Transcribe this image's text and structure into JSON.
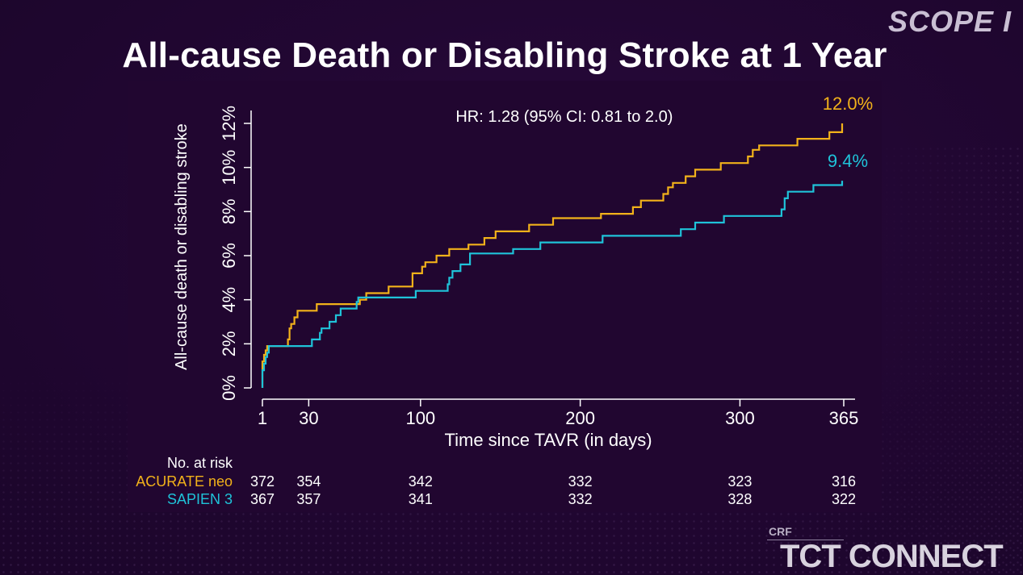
{
  "slide": {
    "title": "All-cause Death or Disabling Stroke at 1 Year",
    "brand_top": "SCOPE I",
    "brand_bottom": "TCT CONNECT",
    "brand_small": "CRF"
  },
  "colors": {
    "acurate": "#f2b21a",
    "sapien": "#1fc3d9",
    "axis": "#ffffff"
  },
  "chart_data": {
    "type": "line",
    "title": "All-cause Death or Disabling Stroke at 1 Year",
    "annotation": "HR: 1.28 (95% CI: 0.81 to 2.0)",
    "xlabel": "Time since TAVR (in days)",
    "ylabel": "All-cause death or disabling stroke",
    "xlim": [
      0,
      365
    ],
    "ylim": [
      0,
      12
    ],
    "x_ticks": [
      1,
      30,
      100,
      200,
      300,
      365
    ],
    "x_tick_labels": [
      "1",
      "30",
      "100",
      "200",
      "300",
      "365"
    ],
    "y_ticks": [
      0,
      2,
      4,
      6,
      8,
      10,
      12
    ],
    "y_tick_labels": [
      "0%",
      "2%",
      "4%",
      "6%",
      "8%",
      "10%",
      "12%"
    ],
    "series": [
      {
        "name": "ACURATE neo",
        "color": "#f2b21a",
        "end_label": "12.0%",
        "points": [
          [
            0,
            0
          ],
          [
            0,
            0.9
          ],
          [
            1,
            0.9
          ],
          [
            1,
            1.2
          ],
          [
            2,
            1.2
          ],
          [
            2,
            1.5
          ],
          [
            3,
            1.5
          ],
          [
            3,
            1.7
          ],
          [
            4,
            1.7
          ],
          [
            4,
            1.9
          ],
          [
            17,
            1.9
          ],
          [
            17,
            2.2
          ],
          [
            18,
            2.2
          ],
          [
            18,
            2.7
          ],
          [
            19,
            2.7
          ],
          [
            19,
            2.9
          ],
          [
            21,
            2.9
          ],
          [
            21,
            3.2
          ],
          [
            23,
            3.2
          ],
          [
            23,
            3.5
          ],
          [
            35,
            3.5
          ],
          [
            35,
            3.8
          ],
          [
            62,
            3.8
          ],
          [
            62,
            4.0
          ],
          [
            66,
            4.0
          ],
          [
            66,
            4.3
          ],
          [
            80,
            4.3
          ],
          [
            80,
            4.6
          ],
          [
            95,
            4.6
          ],
          [
            95,
            5.2
          ],
          [
            101,
            5.2
          ],
          [
            101,
            5.5
          ],
          [
            103,
            5.5
          ],
          [
            103,
            5.7
          ],
          [
            110,
            5.7
          ],
          [
            110,
            6.0
          ],
          [
            118,
            6.0
          ],
          [
            118,
            6.3
          ],
          [
            130,
            6.3
          ],
          [
            130,
            6.5
          ],
          [
            140,
            6.5
          ],
          [
            140,
            6.8
          ],
          [
            147,
            6.8
          ],
          [
            147,
            7.1
          ],
          [
            168,
            7.1
          ],
          [
            168,
            7.4
          ],
          [
            183,
            7.4
          ],
          [
            183,
            7.7
          ],
          [
            213,
            7.7
          ],
          [
            213,
            7.9
          ],
          [
            233,
            7.9
          ],
          [
            233,
            8.2
          ],
          [
            238,
            8.2
          ],
          [
            238,
            8.5
          ],
          [
            252,
            8.5
          ],
          [
            252,
            8.8
          ],
          [
            255,
            8.8
          ],
          [
            255,
            9.1
          ],
          [
            258,
            9.1
          ],
          [
            258,
            9.3
          ],
          [
            266,
            9.3
          ],
          [
            266,
            9.6
          ],
          [
            272,
            9.6
          ],
          [
            272,
            9.9
          ],
          [
            288,
            9.9
          ],
          [
            288,
            10.2
          ],
          [
            305,
            10.2
          ],
          [
            305,
            10.5
          ],
          [
            308,
            10.5
          ],
          [
            308,
            10.8
          ],
          [
            312,
            10.8
          ],
          [
            312,
            11.0
          ],
          [
            336,
            11.0
          ],
          [
            336,
            11.3
          ],
          [
            356,
            11.3
          ],
          [
            356,
            11.6
          ],
          [
            364,
            11.6
          ],
          [
            364,
            12.0
          ]
        ]
      },
      {
        "name": "SAPIEN 3",
        "color": "#1fc3d9",
        "end_label": "9.4%",
        "points": [
          [
            0,
            0
          ],
          [
            0,
            0.5
          ],
          [
            1,
            0.5
          ],
          [
            1,
            0.8
          ],
          [
            2,
            0.8
          ],
          [
            2,
            1.1
          ],
          [
            3,
            1.1
          ],
          [
            3,
            1.4
          ],
          [
            4,
            1.4
          ],
          [
            4,
            1.6
          ],
          [
            5,
            1.6
          ],
          [
            5,
            1.9
          ],
          [
            32,
            1.9
          ],
          [
            32,
            2.2
          ],
          [
            37,
            2.2
          ],
          [
            37,
            2.5
          ],
          [
            38,
            2.5
          ],
          [
            38,
            2.7
          ],
          [
            43,
            2.7
          ],
          [
            43,
            3.0
          ],
          [
            47,
            3.0
          ],
          [
            47,
            3.3
          ],
          [
            50,
            3.3
          ],
          [
            50,
            3.6
          ],
          [
            60,
            3.6
          ],
          [
            60,
            3.9
          ],
          [
            61,
            3.9
          ],
          [
            61,
            4.1
          ],
          [
            97,
            4.1
          ],
          [
            97,
            4.4
          ],
          [
            117,
            4.4
          ],
          [
            117,
            4.7
          ],
          [
            118,
            4.7
          ],
          [
            118,
            5.0
          ],
          [
            120,
            5.0
          ],
          [
            120,
            5.3
          ],
          [
            125,
            5.3
          ],
          [
            125,
            5.6
          ],
          [
            131,
            5.6
          ],
          [
            131,
            6.1
          ],
          [
            158,
            6.1
          ],
          [
            158,
            6.3
          ],
          [
            175,
            6.3
          ],
          [
            175,
            6.6
          ],
          [
            214,
            6.6
          ],
          [
            214,
            6.9
          ],
          [
            263,
            6.9
          ],
          [
            263,
            7.2
          ],
          [
            272,
            7.2
          ],
          [
            272,
            7.5
          ],
          [
            290,
            7.5
          ],
          [
            290,
            7.8
          ],
          [
            326,
            7.8
          ],
          [
            326,
            8.1
          ],
          [
            328,
            8.1
          ],
          [
            328,
            8.6
          ],
          [
            330,
            8.6
          ],
          [
            330,
            8.9
          ],
          [
            346,
            8.9
          ],
          [
            346,
            9.2
          ],
          [
            364,
            9.2
          ],
          [
            364,
            9.4
          ]
        ]
      }
    ],
    "risk_table": {
      "header": "No. at risk",
      "times": [
        1,
        30,
        100,
        200,
        300,
        365
      ],
      "rows": [
        {
          "name": "ACURATE neo",
          "values": [
            "372",
            "354",
            "342",
            "332",
            "323",
            "316"
          ]
        },
        {
          "name": "SAPIEN 3",
          "values": [
            "367",
            "357",
            "341",
            "332",
            "328",
            "322"
          ]
        }
      ]
    }
  }
}
